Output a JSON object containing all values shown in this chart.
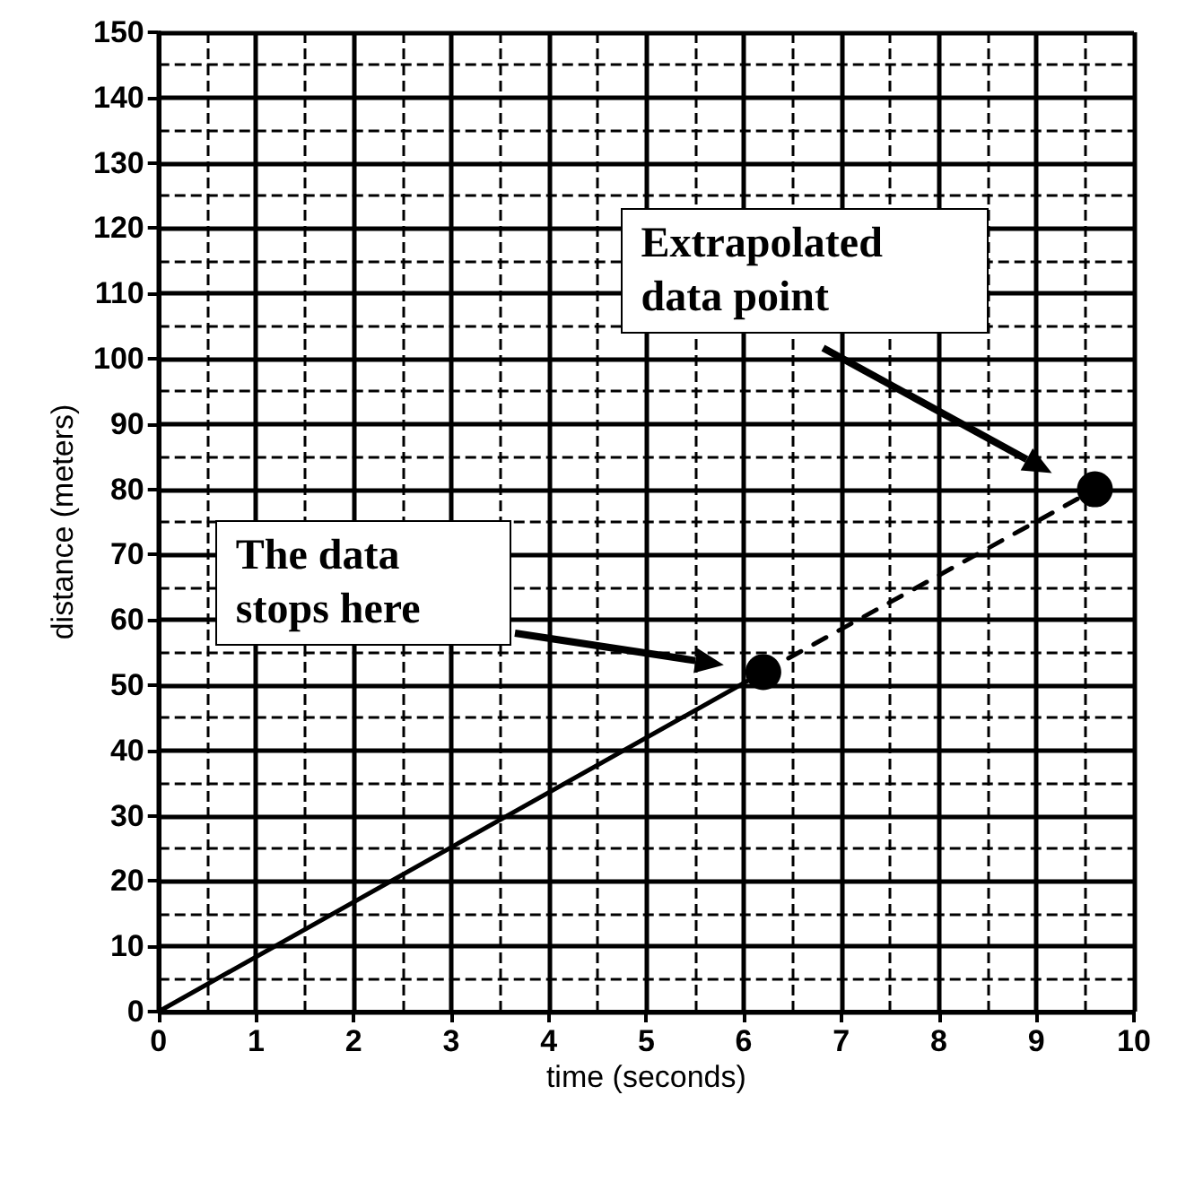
{
  "chart_data": {
    "type": "line",
    "xlabel": "time (seconds)",
    "ylabel": "distance (meters)",
    "xlim": [
      0,
      10
    ],
    "ylim": [
      0,
      150
    ],
    "xticks": [
      0,
      1,
      2,
      3,
      4,
      5,
      6,
      7,
      8,
      9,
      10
    ],
    "yticks": [
      0,
      10,
      20,
      30,
      40,
      50,
      60,
      70,
      80,
      90,
      100,
      110,
      120,
      130,
      140,
      150
    ],
    "grid": true,
    "annotations": [
      "The data stops here",
      "Extrapolated data point"
    ],
    "series": [
      {
        "color": "#000000",
        "x": [
          0,
          6.2
        ],
        "values": [
          0,
          52
        ],
        "line_style": "solid",
        "marker": "none"
      },
      {
        "color": "#000000",
        "x": [
          6.2,
          9.6
        ],
        "values": [
          52,
          80
        ],
        "line_style": "dashed",
        "marker": "none"
      },
      {
        "type": "scatter",
        "color": "#000000",
        "x": [
          6.2,
          9.6
        ],
        "values": [
          52,
          80
        ],
        "marker": "circle"
      }
    ]
  }
}
